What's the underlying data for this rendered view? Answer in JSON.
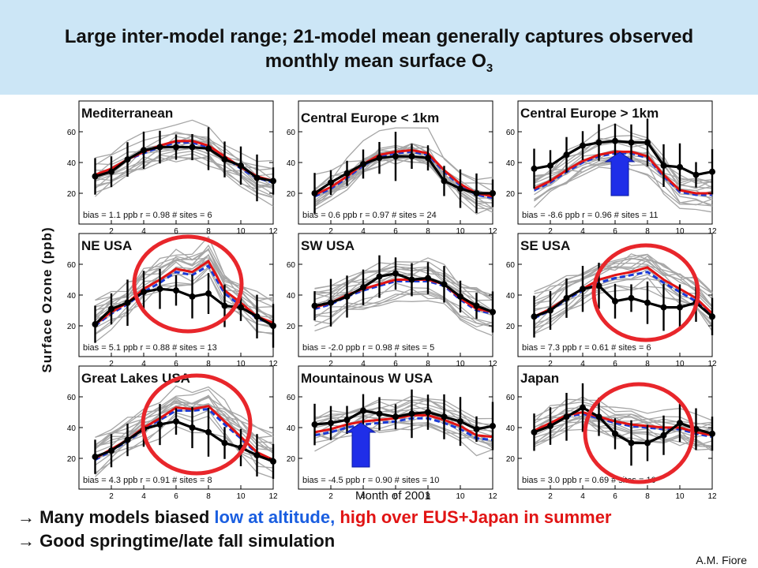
{
  "title": {
    "line1": "Large inter-model range; 21-model mean generally captures observed",
    "line2": "monthly mean surface O",
    "line2_sub": "3"
  },
  "y_axis_label": "Surface Ozone (ppb)",
  "x_axis_label": "Month of 2001",
  "bullets": {
    "arrow": "→",
    "b1_prefix": "Many models biased ",
    "b1_low": "low at altitude,",
    "b1_high": " high over EUS+Japan in summer",
    "b2": "Good springtime/late fall simulation"
  },
  "credit": "A.M. Fiore",
  "colors": {
    "title_band": "#cce6f6",
    "observed": "#000000",
    "model_mean": "#e11414",
    "model_median": "#1a3ad6",
    "individual_models": "#a6a6a6",
    "circle": "#e8262b",
    "up_arrow": "#1f2ee8",
    "text_low": "#1a5ee0",
    "text_high": "#e11414"
  },
  "chart_data": [
    {
      "type": "line",
      "title": "Mediterranean",
      "stats": "bias = 1.1 ppb   r = 0.98   # sites = 6",
      "x": [
        1,
        2,
        3,
        4,
        5,
        6,
        7,
        8,
        9,
        10,
        11,
        12
      ],
      "xlim": [
        0,
        12
      ],
      "ylim": [
        0,
        80
      ],
      "x_ticks": [
        2,
        4,
        6,
        8,
        10,
        12
      ],
      "y_ticks": [
        20,
        40,
        60
      ],
      "series": [
        {
          "role": "observed",
          "values": [
            31,
            34,
            42,
            48,
            50,
            50,
            50,
            49,
            42,
            38,
            30,
            28
          ]
        },
        {
          "role": "model_mean",
          "values": [
            32,
            36,
            42,
            47,
            51,
            54,
            54,
            51,
            44,
            37,
            31,
            28
          ]
        },
        {
          "role": "model_median",
          "values": [
            31,
            35,
            42,
            46,
            50,
            53,
            53,
            50,
            44,
            36,
            30,
            27
          ]
        }
      ]
    },
    {
      "type": "line",
      "title": "Central Europe < 1km",
      "stats": "bias = 0.6 ppb   r = 0.97   # sites = 24",
      "x": [
        1,
        2,
        3,
        4,
        5,
        6,
        7,
        8,
        9,
        10,
        11,
        12
      ],
      "xlim": [
        0,
        12
      ],
      "ylim": [
        0,
        80
      ],
      "x_ticks": [
        2,
        4,
        6,
        8,
        10,
        12
      ],
      "y_ticks": [
        20,
        40,
        60
      ],
      "series": [
        {
          "role": "observed",
          "values": [
            20,
            27,
            33,
            39,
            43,
            44,
            44,
            43,
            28,
            23,
            20,
            20
          ]
        },
        {
          "role": "model_mean",
          "values": [
            19,
            24,
            31,
            39,
            45,
            47,
            48,
            46,
            35,
            26,
            20,
            18
          ]
        },
        {
          "role": "model_median",
          "values": [
            18,
            23,
            30,
            38,
            44,
            46,
            47,
            45,
            34,
            25,
            19,
            17
          ]
        }
      ]
    },
    {
      "type": "line",
      "title": "Central Europe > 1km",
      "stats": "bias = -8.6 ppb   r = 0.96   # sites = 11",
      "x": [
        1,
        2,
        3,
        4,
        5,
        6,
        7,
        8,
        9,
        10,
        11,
        12
      ],
      "xlim": [
        0,
        12
      ],
      "ylim": [
        0,
        80
      ],
      "x_ticks": [
        2,
        4,
        6,
        8,
        10,
        12
      ],
      "y_ticks": [
        20,
        40,
        60
      ],
      "series": [
        {
          "role": "observed",
          "values": [
            36,
            38,
            45,
            51,
            53,
            54,
            53,
            53,
            38,
            37,
            32,
            34
          ]
        },
        {
          "role": "model_mean",
          "values": [
            23,
            28,
            35,
            41,
            45,
            47,
            47,
            44,
            32,
            22,
            20,
            20
          ]
        },
        {
          "role": "model_median",
          "values": [
            22,
            27,
            34,
            40,
            44,
            46,
            46,
            43,
            31,
            21,
            19,
            19
          ]
        }
      ]
    },
    {
      "type": "line",
      "title": "NE USA",
      "stats": "bias = 5.1 ppb   r = 0.88   # sites = 13",
      "x": [
        1,
        2,
        3,
        4,
        5,
        6,
        7,
        8,
        9,
        10,
        11,
        12
      ],
      "xlim": [
        0,
        12
      ],
      "ylim": [
        0,
        80
      ],
      "x_ticks": [
        2,
        4,
        6,
        8,
        10,
        12
      ],
      "y_ticks": [
        20,
        40,
        60
      ],
      "series": [
        {
          "role": "observed",
          "values": [
            21,
            31,
            35,
            42,
            44,
            43,
            39,
            41,
            33,
            32,
            26,
            20
          ]
        },
        {
          "role": "model_mean",
          "values": [
            21,
            29,
            35,
            44,
            50,
            57,
            55,
            62,
            43,
            35,
            26,
            22
          ]
        },
        {
          "role": "model_median",
          "values": [
            20,
            28,
            34,
            42,
            48,
            55,
            53,
            59,
            41,
            33,
            25,
            21
          ]
        }
      ]
    },
    {
      "type": "line",
      "title": "SW USA",
      "stats": "bias = -2.0 ppb   r = 0.98   # sites = 5",
      "x": [
        1,
        2,
        3,
        4,
        5,
        6,
        7,
        8,
        9,
        10,
        11,
        12
      ],
      "xlim": [
        0,
        12
      ],
      "ylim": [
        0,
        80
      ],
      "x_ticks": [
        2,
        4,
        6,
        8,
        10,
        12
      ],
      "y_ticks": [
        20,
        40,
        60
      ],
      "series": [
        {
          "role": "observed",
          "values": [
            33,
            35,
            39,
            45,
            52,
            54,
            50,
            51,
            47,
            39,
            33,
            29
          ]
        },
        {
          "role": "model_mean",
          "values": [
            32,
            35,
            40,
            44,
            47,
            50,
            50,
            50,
            47,
            38,
            31,
            29
          ]
        },
        {
          "role": "model_median",
          "values": [
            31,
            34,
            39,
            43,
            46,
            49,
            49,
            49,
            46,
            37,
            30,
            28
          ]
        }
      ]
    },
    {
      "type": "line",
      "title": "SE USA",
      "stats": "bias = 7.3 ppb   r = 0.61   # sites = 6",
      "x": [
        1,
        2,
        3,
        4,
        5,
        6,
        7,
        8,
        9,
        10,
        11,
        12
      ],
      "xlim": [
        0,
        12
      ],
      "ylim": [
        0,
        80
      ],
      "x_ticks": [
        2,
        4,
        6,
        8,
        10,
        12
      ],
      "y_ticks": [
        20,
        40,
        60
      ],
      "series": [
        {
          "role": "observed",
          "values": [
            26,
            30,
            38,
            44,
            46,
            36,
            38,
            35,
            32,
            32,
            35,
            26
          ]
        },
        {
          "role": "model_mean",
          "values": [
            26,
            31,
            38,
            44,
            50,
            53,
            55,
            58,
            50,
            44,
            38,
            28
          ]
        },
        {
          "role": "model_median",
          "values": [
            25,
            30,
            37,
            43,
            48,
            51,
            53,
            55,
            48,
            42,
            36,
            27
          ]
        }
      ]
    },
    {
      "type": "line",
      "title": "Great Lakes USA",
      "stats": "bias = 4.3 ppb   r = 0.91   # sites = 8",
      "x": [
        1,
        2,
        3,
        4,
        5,
        6,
        7,
        8,
        9,
        10,
        11,
        12
      ],
      "xlim": [
        0,
        12
      ],
      "ylim": [
        0,
        80
      ],
      "x_ticks": [
        2,
        4,
        6,
        8,
        10,
        12
      ],
      "y_ticks": [
        20,
        40,
        60
      ],
      "series": [
        {
          "role": "observed",
          "values": [
            21,
            25,
            32,
            39,
            42,
            44,
            40,
            37,
            30,
            27,
            22,
            18
          ]
        },
        {
          "role": "model_mean",
          "values": [
            20,
            26,
            32,
            40,
            46,
            53,
            52,
            54,
            44,
            34,
            24,
            19
          ]
        },
        {
          "role": "model_median",
          "values": [
            19,
            25,
            31,
            39,
            45,
            51,
            51,
            52,
            42,
            33,
            23,
            18
          ]
        }
      ]
    },
    {
      "type": "line",
      "title": "Mountainous W USA",
      "stats": "bias = -4.5 ppb   r = 0.90   # sites = 10",
      "x": [
        1,
        2,
        3,
        4,
        5,
        6,
        7,
        8,
        9,
        10,
        11,
        12
      ],
      "xlim": [
        0,
        12
      ],
      "ylim": [
        0,
        80
      ],
      "x_ticks": [
        2,
        4,
        6,
        8,
        10,
        12
      ],
      "y_ticks": [
        20,
        40,
        60
      ],
      "series": [
        {
          "role": "observed",
          "values": [
            42,
            43,
            45,
            51,
            49,
            47,
            49,
            50,
            47,
            44,
            39,
            41
          ]
        },
        {
          "role": "model_mean",
          "values": [
            37,
            39,
            42,
            44,
            45,
            46,
            48,
            48,
            45,
            41,
            35,
            34
          ]
        },
        {
          "role": "model_median",
          "values": [
            35,
            37,
            40,
            42,
            43,
            44,
            46,
            46,
            43,
            39,
            33,
            32
          ]
        }
      ]
    },
    {
      "type": "line",
      "title": "Japan",
      "stats": "bias = 3.0 ppb   r = 0.69   # sites = 10",
      "x": [
        1,
        2,
        3,
        4,
        5,
        6,
        7,
        8,
        9,
        10,
        11,
        12
      ],
      "xlim": [
        0,
        12
      ],
      "ylim": [
        0,
        80
      ],
      "x_ticks": [
        2,
        4,
        6,
        8,
        10,
        12
      ],
      "y_ticks": [
        20,
        40,
        60
      ],
      "series": [
        {
          "role": "observed",
          "values": [
            37,
            41,
            47,
            53,
            47,
            36,
            30,
            30,
            35,
            43,
            39,
            36
          ]
        },
        {
          "role": "model_mean",
          "values": [
            38,
            43,
            48,
            50,
            47,
            44,
            42,
            41,
            40,
            40,
            37,
            35
          ]
        },
        {
          "role": "model_median",
          "values": [
            37,
            42,
            47,
            49,
            46,
            43,
            41,
            40,
            39,
            39,
            36,
            34
          ]
        }
      ]
    }
  ]
}
